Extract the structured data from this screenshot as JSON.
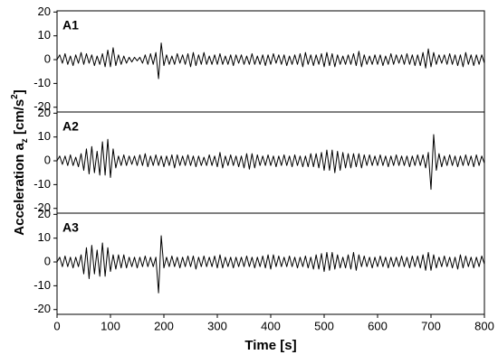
{
  "chart_data": [
    {
      "type": "line",
      "label": "A1",
      "color": "#000000",
      "x": [
        0,
        5,
        10,
        15,
        20,
        25,
        30,
        35,
        40,
        45,
        50,
        55,
        60,
        65,
        70,
        75,
        80,
        85,
        90,
        95,
        100,
        105,
        110,
        115,
        120,
        125,
        130,
        135,
        140,
        145,
        150,
        155,
        160,
        165,
        170,
        175,
        180,
        185,
        190,
        195,
        200,
        205,
        210,
        215,
        220,
        225,
        230,
        235,
        240,
        245,
        250,
        255,
        260,
        265,
        270,
        275,
        280,
        285,
        290,
        295,
        300,
        305,
        310,
        315,
        320,
        325,
        330,
        335,
        340,
        345,
        350,
        355,
        360,
        365,
        370,
        375,
        380,
        385,
        390,
        395,
        400,
        405,
        410,
        415,
        420,
        425,
        430,
        435,
        440,
        445,
        450,
        455,
        460,
        465,
        470,
        475,
        480,
        485,
        490,
        495,
        500,
        505,
        510,
        515,
        520,
        525,
        530,
        535,
        540,
        545,
        550,
        555,
        560,
        565,
        570,
        575,
        580,
        585,
        590,
        595,
        600,
        605,
        610,
        615,
        620,
        625,
        630,
        635,
        640,
        645,
        650,
        655,
        660,
        665,
        670,
        675,
        680,
        685,
        690,
        695,
        700,
        705,
        710,
        715,
        720,
        725,
        730,
        735,
        740,
        745,
        750,
        755,
        760,
        765,
        770,
        775,
        780,
        785,
        790,
        795,
        800
      ],
      "values": [
        0,
        2,
        -1.5,
        2.5,
        -2,
        1.5,
        -2.5,
        2,
        -1.5,
        3,
        -2,
        2.5,
        -1.5,
        2,
        -2.5,
        1.5,
        -2,
        2.5,
        -3,
        4,
        -3,
        5,
        -2.5,
        2,
        -2,
        1.5,
        -1.5,
        1,
        -1,
        1,
        -0.5,
        1,
        -1.5,
        2,
        -2,
        2.5,
        -2,
        3,
        -8,
        7,
        -2.5,
        2,
        -2,
        1.5,
        -2,
        2.5,
        -1.5,
        2,
        -2,
        2.5,
        -3,
        3,
        -2.5,
        2,
        -2,
        3,
        -2,
        1.5,
        -2,
        2,
        -2,
        2.5,
        -2,
        1.5,
        -2,
        2,
        -2.5,
        2,
        -1.5,
        2,
        -2,
        1.5,
        -2,
        2.5,
        -2,
        1.5,
        -2,
        2,
        -2.5,
        2,
        -2,
        2.5,
        -1.5,
        2,
        -2,
        2,
        -2.5,
        1.5,
        -2,
        2,
        -2,
        2.5,
        -3,
        3,
        -2,
        2,
        -2.5,
        2,
        -2,
        2.5,
        -3,
        3,
        -2.5,
        2.5,
        -3,
        2,
        -2,
        1.5,
        -2,
        2,
        -2,
        2.5,
        -2.5,
        3.5,
        -3,
        2,
        -2,
        1.5,
        -2,
        2,
        -2,
        2,
        -2.5,
        1.5,
        -2,
        2.5,
        -2,
        2,
        -1.5,
        2,
        -2,
        2.5,
        -2,
        2,
        -2.5,
        2,
        -2.5,
        3,
        -3.5,
        4.5,
        -3,
        3,
        -2,
        2,
        -1.5,
        2,
        -2,
        2.5,
        -2,
        2,
        -2.5,
        2,
        -3,
        3,
        -2,
        2,
        -2.5,
        2,
        -2,
        2,
        -1.5
      ],
      "ylim": [
        -22,
        20.5
      ],
      "yticks": [
        -20,
        -10,
        0,
        10,
        20
      ]
    },
    {
      "type": "line",
      "label": "A2",
      "color": "#000000",
      "ylabel": {
        "text": "Acceleration a",
        "sub": "z",
        "unit": " [cm/s",
        "sup": "2",
        "close": "]"
      },
      "x": [
        0,
        5,
        10,
        15,
        20,
        25,
        30,
        35,
        40,
        45,
        50,
        55,
        60,
        65,
        70,
        75,
        80,
        85,
        90,
        95,
        100,
        105,
        110,
        115,
        120,
        125,
        130,
        135,
        140,
        145,
        150,
        155,
        160,
        165,
        170,
        175,
        180,
        185,
        190,
        195,
        200,
        205,
        210,
        215,
        220,
        225,
        230,
        235,
        240,
        245,
        250,
        255,
        260,
        265,
        270,
        275,
        280,
        285,
        290,
        295,
        300,
        305,
        310,
        315,
        320,
        325,
        330,
        335,
        340,
        345,
        350,
        355,
        360,
        365,
        370,
        375,
        380,
        385,
        390,
        395,
        400,
        405,
        410,
        415,
        420,
        425,
        430,
        435,
        440,
        445,
        450,
        455,
        460,
        465,
        470,
        475,
        480,
        485,
        490,
        495,
        500,
        505,
        510,
        515,
        520,
        525,
        530,
        535,
        540,
        545,
        550,
        555,
        560,
        565,
        570,
        575,
        580,
        585,
        590,
        595,
        600,
        605,
        610,
        615,
        620,
        625,
        630,
        635,
        640,
        645,
        650,
        655,
        660,
        665,
        670,
        675,
        680,
        685,
        690,
        695,
        700,
        705,
        710,
        715,
        720,
        725,
        730,
        735,
        740,
        745,
        750,
        755,
        760,
        765,
        770,
        775,
        780,
        785,
        790,
        795,
        800
      ],
      "values": [
        0,
        2,
        -1.5,
        2,
        -2,
        2.5,
        -2,
        1.5,
        -2.5,
        3,
        -4,
        5,
        -5.5,
        6,
        -5,
        4,
        -6,
        8,
        -6,
        9,
        -7,
        5,
        -3,
        2,
        -2,
        2.5,
        -2,
        2,
        -1.5,
        2,
        -2,
        2.5,
        -2,
        3,
        -2.5,
        2,
        -2,
        2.5,
        -2,
        2,
        -2.5,
        2,
        -2,
        2.5,
        -3,
        2.5,
        -2,
        2,
        -2,
        2.5,
        -2,
        2,
        -2.5,
        2,
        -2,
        1.5,
        -2,
        2.5,
        -2,
        2,
        -2.5,
        3.5,
        -3,
        2,
        -2,
        2.5,
        -2,
        2,
        -2.5,
        2,
        -3,
        3,
        -3.5,
        3,
        -3,
        2.5,
        -2,
        2,
        -2,
        2.5,
        -2,
        2,
        -2.5,
        2,
        -2,
        2.5,
        -2,
        2,
        -2.5,
        2.5,
        -2,
        2,
        -2.5,
        2,
        -2.5,
        3,
        -2.5,
        3,
        -3,
        3.5,
        -4,
        4.5,
        -4,
        4.5,
        -5,
        4,
        -4,
        3.5,
        -3,
        3,
        -3,
        3,
        -2.5,
        3,
        -3,
        2.5,
        -2,
        2.5,
        -2,
        2,
        -2,
        2.5,
        -2,
        2,
        -2.5,
        2,
        -2,
        2.5,
        -2,
        2,
        -2,
        2,
        -2.5,
        2,
        -2,
        2.5,
        -2,
        2.5,
        -3,
        3.5,
        -12,
        11,
        -4,
        3,
        -2.5,
        2,
        -2,
        2.5,
        -2,
        2,
        -2.5,
        2,
        -2,
        2.5,
        -2,
        2,
        -2.5,
        2.5,
        -2,
        2,
        -1
      ],
      "ylim": [
        -22,
        20.5
      ],
      "yticks": [
        -20,
        -10,
        0,
        10,
        20
      ]
    },
    {
      "type": "line",
      "label": "A3",
      "color": "#000000",
      "xlabel": "Time [s]",
      "x": [
        0,
        5,
        10,
        15,
        20,
        25,
        30,
        35,
        40,
        45,
        50,
        55,
        60,
        65,
        70,
        75,
        80,
        85,
        90,
        95,
        100,
        105,
        110,
        115,
        120,
        125,
        130,
        135,
        140,
        145,
        150,
        155,
        160,
        165,
        170,
        175,
        180,
        185,
        190,
        195,
        200,
        205,
        210,
        215,
        220,
        225,
        230,
        235,
        240,
        245,
        250,
        255,
        260,
        265,
        270,
        275,
        280,
        285,
        290,
        295,
        300,
        305,
        310,
        315,
        320,
        325,
        330,
        335,
        340,
        345,
        350,
        355,
        360,
        365,
        370,
        375,
        380,
        385,
        390,
        395,
        400,
        405,
        410,
        415,
        420,
        425,
        430,
        435,
        440,
        445,
        450,
        455,
        460,
        465,
        470,
        475,
        480,
        485,
        490,
        495,
        500,
        505,
        510,
        515,
        520,
        525,
        530,
        535,
        540,
        545,
        550,
        555,
        560,
        565,
        570,
        575,
        580,
        585,
        590,
        595,
        600,
        605,
        610,
        615,
        620,
        625,
        630,
        635,
        640,
        645,
        650,
        655,
        660,
        665,
        670,
        675,
        680,
        685,
        690,
        695,
        700,
        705,
        710,
        715,
        720,
        725,
        730,
        735,
        740,
        745,
        750,
        755,
        760,
        765,
        770,
        775,
        780,
        785,
        790,
        795,
        800
      ],
      "values": [
        0,
        2,
        -2,
        2.5,
        -2,
        2,
        -2.5,
        2,
        -2,
        3,
        -5,
        6,
        -7,
        7,
        -5,
        5,
        -6,
        8,
        -6,
        6,
        -4,
        3,
        -3,
        3,
        -2.5,
        3,
        -2.5,
        2,
        -2,
        2,
        -2.5,
        2,
        -2,
        2.5,
        -2,
        2,
        -2,
        2,
        -13,
        11,
        -2.5,
        2,
        -2,
        2.5,
        -2,
        2,
        -2.5,
        2,
        -2,
        2.5,
        -2,
        2.5,
        -3,
        2,
        -2,
        2.5,
        -2,
        2,
        -2,
        2.5,
        -2.5,
        3,
        -2.5,
        2,
        -2,
        2,
        -2.5,
        2,
        -2,
        2,
        -2,
        2.5,
        -2,
        2,
        -2.5,
        2,
        -2,
        2.5,
        -2.5,
        3,
        -3,
        3,
        -2,
        2.5,
        -2,
        2,
        -2,
        2.5,
        -2,
        2,
        -2.5,
        2,
        -2,
        2.5,
        -2.5,
        2,
        -3,
        3,
        -3,
        3.5,
        -4,
        4,
        -3.5,
        4,
        -3,
        3,
        -2.5,
        2,
        -2.5,
        3,
        -3,
        4,
        -3.5,
        3,
        -2,
        2.5,
        -2,
        2,
        -2.5,
        2,
        -2,
        2.5,
        -2,
        2,
        -2.5,
        2,
        -2,
        2,
        -2,
        2.5,
        -2,
        2,
        -2.5,
        2.5,
        -2,
        2.5,
        -2.5,
        3,
        -3.5,
        4,
        -3.5,
        3,
        -2.5,
        2,
        -2,
        2.5,
        -2,
        2,
        -2.5,
        2,
        -3,
        3,
        -2.5,
        2.5,
        -2,
        2,
        -2.5,
        2,
        -2,
        2.5,
        -1
      ],
      "xlim": [
        0,
        800
      ],
      "xticks": [
        0,
        100,
        200,
        300,
        400,
        500,
        600,
        700,
        800
      ],
      "ylim": [
        -22,
        20.5
      ],
      "yticks": [
        -20,
        -10,
        0,
        10,
        20
      ]
    }
  ]
}
